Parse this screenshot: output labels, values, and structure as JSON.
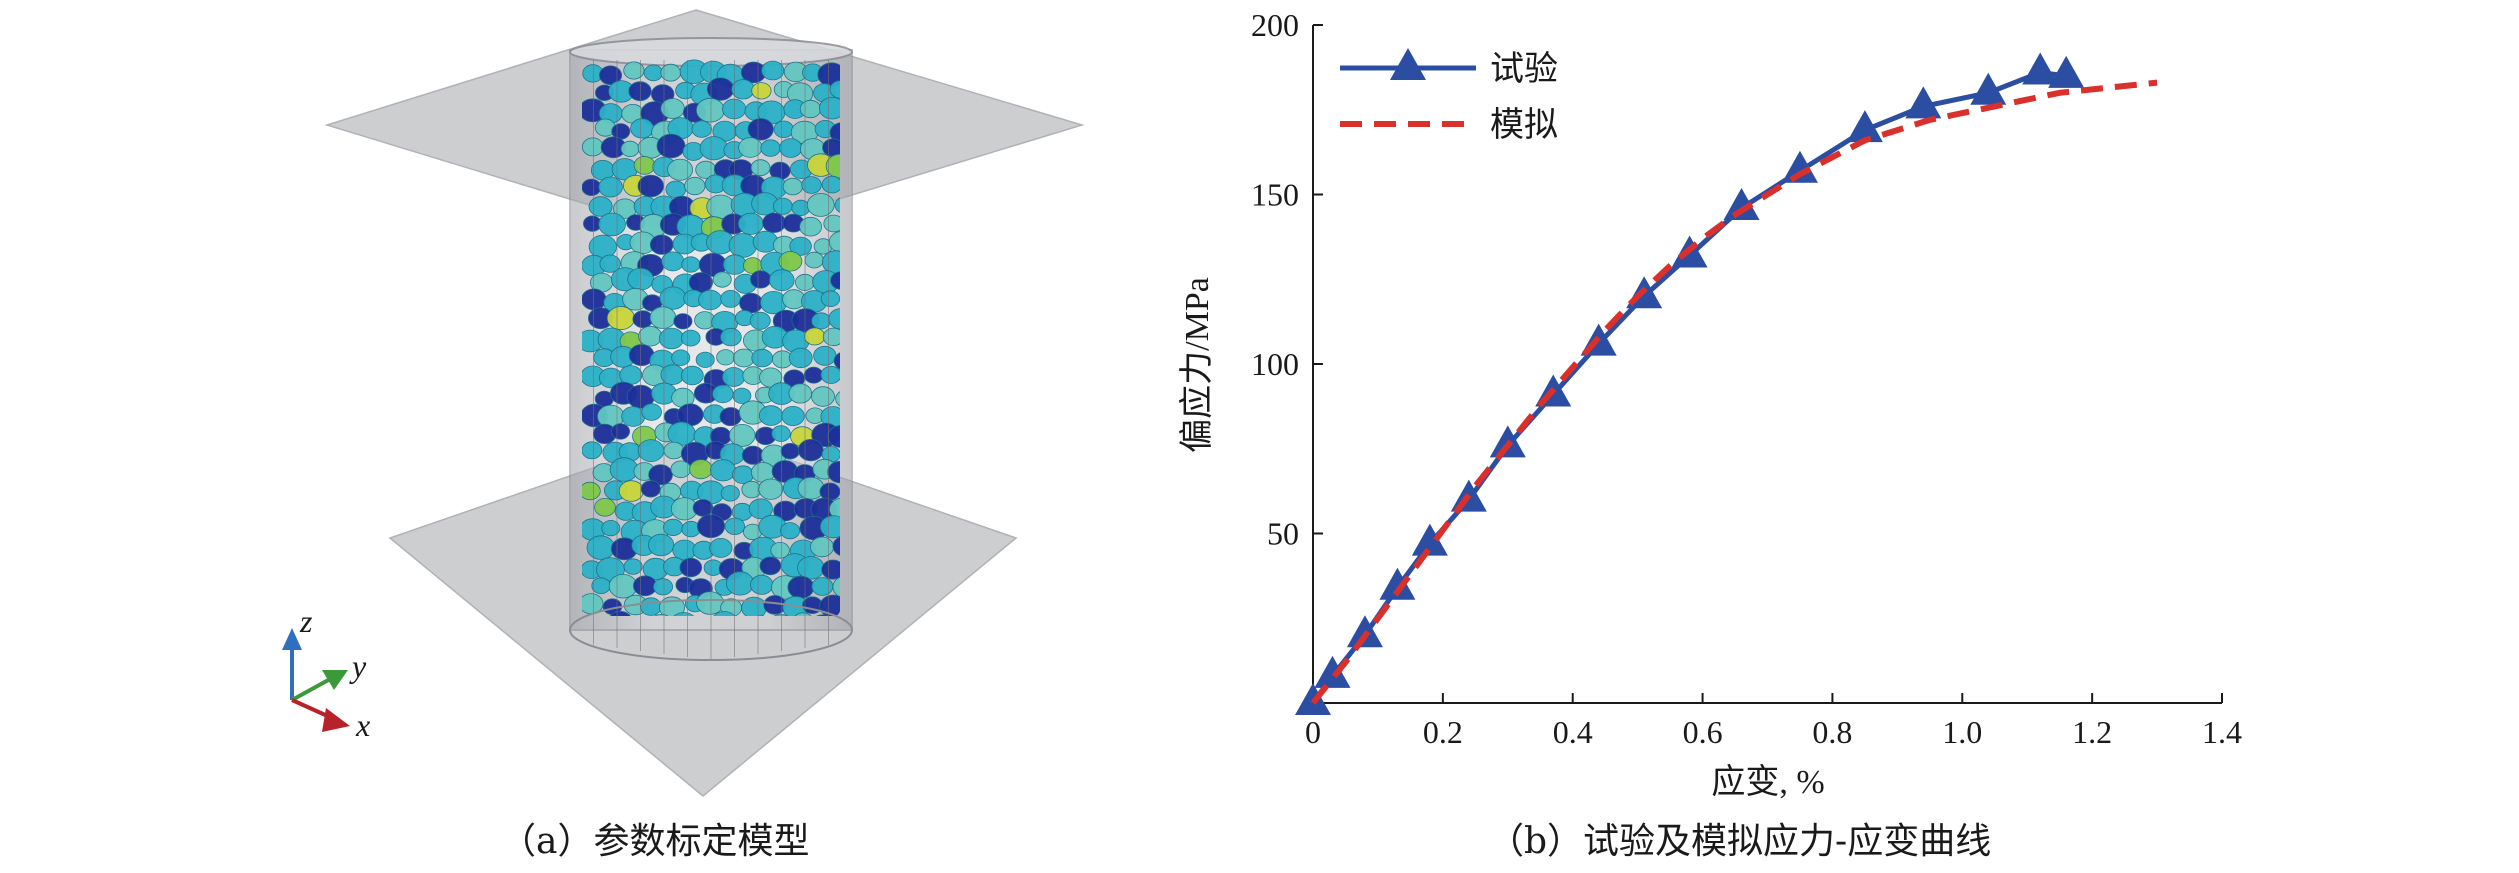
{
  "panel_a": {
    "caption": "（a）参数标定模型",
    "axis_labels": {
      "z": "z",
      "y": "y",
      "x": "x"
    },
    "colors": {
      "plate": "#c6c6c8",
      "cylinder": "#b9bbc0",
      "particle_main": "#2bb1c8",
      "particle_dark": "#1c2f9a",
      "particle_light": "#63c7c0",
      "particle_green": "#7fc84a",
      "particle_yellow": "#c9d53a",
      "axis_z": "#2f6fc0",
      "axis_y": "#3a9a3a",
      "axis_x": "#b8222a"
    }
  },
  "panel_b": {
    "caption": "（b）试验及模拟应力-应变曲线",
    "chart_data": {
      "type": "line",
      "title": "",
      "xlabel": "应变, %",
      "ylabel": "偏应力/MPa",
      "xlim": [
        0,
        1.4
      ],
      "ylim": [
        0,
        200
      ],
      "x_ticks": [
        "0",
        "0.2",
        "0.4",
        "0.6",
        "0.8",
        "1.0",
        "1.2",
        "1.4"
      ],
      "y_ticks": [
        "50",
        "100",
        "150",
        "200"
      ],
      "grid": false,
      "legend_position": "top-left",
      "series": [
        {
          "name": "试验",
          "color": "#2b4ea2",
          "style": "solid-triangle",
          "x": [
            0.0,
            0.03,
            0.08,
            0.13,
            0.18,
            0.24,
            0.3,
            0.37,
            0.44,
            0.51,
            0.58,
            0.66,
            0.75,
            0.85,
            0.94,
            1.04,
            1.12,
            1.16
          ],
          "y": [
            0,
            8,
            20,
            34,
            47,
            60,
            76,
            91,
            106,
            120,
            132,
            146,
            157,
            169,
            176,
            180,
            186,
            185
          ]
        },
        {
          "name": "模拟",
          "color": "#d9302c",
          "style": "dashed",
          "x": [
            0.0,
            0.05,
            0.1,
            0.15,
            0.2,
            0.25,
            0.3,
            0.35,
            0.4,
            0.45,
            0.5,
            0.55,
            0.6,
            0.65,
            0.7,
            0.75,
            0.8,
            0.85,
            0.9,
            0.95,
            1.0,
            1.05,
            1.1,
            1.15,
            1.2,
            1.25,
            1.3
          ],
          "y": [
            0,
            12,
            25,
            38,
            51,
            64,
            76,
            88,
            99,
            110,
            120,
            129,
            137,
            144,
            150,
            156,
            161,
            166,
            169,
            172,
            174,
            176,
            178,
            180,
            181,
            182,
            183
          ]
        }
      ]
    }
  }
}
